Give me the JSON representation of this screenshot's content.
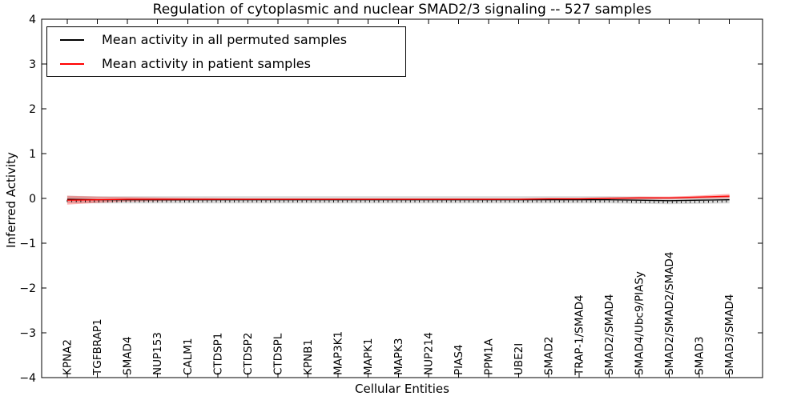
{
  "figure": {
    "title": "Regulation of cytoplasmic and nuclear SMAD2/3 signaling -- 527 samples",
    "xlabel": "Cellular Entities",
    "ylabel": "Inferred Activity"
  },
  "legend": {
    "items": [
      {
        "label": "Mean activity in all permuted samples",
        "color": "#000000"
      },
      {
        "label": "Mean activity in patient samples",
        "color": "#ff0000"
      }
    ]
  },
  "chart_data": {
    "type": "line",
    "title": "Regulation of cytoplasmic and nuclear SMAD2/3 signaling -- 527 samples",
    "xlabel": "Cellular Entities",
    "ylabel": "Inferred Activity",
    "ylim": [
      -4,
      4
    ],
    "xlim": [
      -0.85,
      23.1
    ],
    "yticks": [
      4,
      3,
      2,
      1,
      0,
      -1,
      -2,
      -3,
      -4
    ],
    "grid": false,
    "legend_position": "upper left",
    "categories": [
      "KPNA2",
      "TGFBRAP1",
      "SMAD4",
      "NUP153",
      "CALM1",
      "CTDSP1",
      "CTDSP2",
      "CTDSPL",
      "KPNB1",
      "MAP3K1",
      "MAPK1",
      "MAPK3",
      "NUP214",
      "PIAS4",
      "PPM1A",
      "UBE2I",
      "SMAD2",
      "TRAP-1/SMAD4",
      "SMAD2/SMAD4",
      "SMAD4/Ubc9/PIASy",
      "SMAD2/SMAD2/SMAD4",
      "SMAD3",
      "SMAD3/SMAD4"
    ],
    "series": [
      {
        "name": "Mean activity in all permuted samples",
        "color": "#000000",
        "band_color": "rgba(0,0,0,0.15)",
        "marker": "tickdown",
        "values": [
          -0.02,
          -0.03,
          -0.03,
          -0.03,
          -0.03,
          -0.03,
          -0.03,
          -0.03,
          -0.03,
          -0.03,
          -0.03,
          -0.03,
          -0.03,
          -0.03,
          -0.03,
          -0.03,
          -0.03,
          -0.03,
          -0.03,
          -0.04,
          -0.05,
          -0.04,
          -0.03
        ],
        "band_halfwidth": [
          0.08,
          0.08,
          0.08,
          0.08,
          0.08,
          0.08,
          0.08,
          0.08,
          0.08,
          0.08,
          0.08,
          0.08,
          0.08,
          0.08,
          0.08,
          0.08,
          0.08,
          0.08,
          0.08,
          0.08,
          0.08,
          0.08,
          0.08
        ]
      },
      {
        "name": "Mean activity in patient samples",
        "color": "#ff0000",
        "band_color": "rgba(255,0,0,0.3)",
        "marker": "none",
        "values": [
          -0.04,
          -0.03,
          -0.02,
          -0.02,
          -0.02,
          -0.02,
          -0.02,
          -0.02,
          -0.02,
          -0.02,
          -0.02,
          -0.02,
          -0.02,
          -0.02,
          -0.02,
          -0.02,
          -0.01,
          -0.01,
          0.0,
          0.01,
          0.01,
          0.03,
          0.05
        ],
        "band_halfwidth": [
          0.1,
          0.07,
          0.05,
          0.04,
          0.03,
          0.025,
          0.02,
          0.02,
          0.02,
          0.02,
          0.02,
          0.02,
          0.02,
          0.02,
          0.02,
          0.02,
          0.02,
          0.02,
          0.025,
          0.03,
          0.03,
          0.035,
          0.05
        ]
      }
    ]
  }
}
